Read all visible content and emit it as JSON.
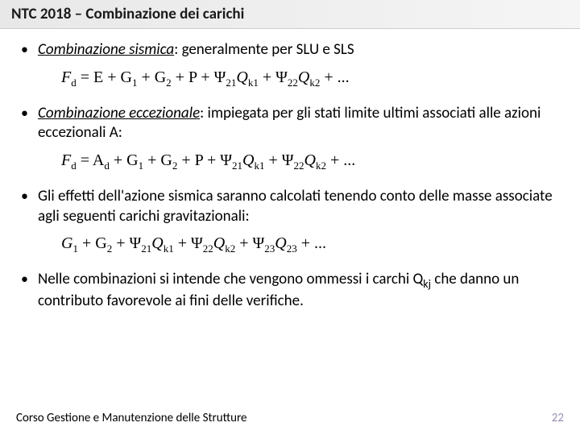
{
  "header": {
    "title": "NTC 2018 – Combinazione dei carichi"
  },
  "bullets": [
    {
      "label_italic": "Combinazione sismica",
      "text_rest": ": generalmente per SLU e SLS"
    },
    {
      "label_italic": "Combinazione eccezionale",
      "text_rest": ": impiegata per gli stati limite ultimi associati alle azioni eccezionali A:"
    },
    {
      "full_text": "Gli effetti dell'azione sismica saranno calcolati tenendo conto delle masse associate agli seguenti carichi gravitazionali:"
    },
    {
      "text_pre": "Nelle combinazioni si intende che vengono ommessi i carchi Q",
      "sub": "kj",
      "text_post": " che danno un contributo favorevole ai fini delle verifiche."
    }
  ],
  "formulas": {
    "f1": {
      "lhs": "F",
      "lhs_sub": "d",
      "eq": " = E + G",
      "g1sub": "1",
      "plus1": " + G",
      "g2sub": "2",
      "plus2": " + P + Ψ",
      "psi21sub": "21",
      "q1": "Q",
      "qk1sub": "k1",
      "plus3": " + Ψ",
      "psi22sub": "22",
      "q2": "Q",
      "qk2sub": "k2",
      "tail": " + ..."
    },
    "f2": {
      "lhs": "F",
      "lhs_sub": "d",
      "eq": " = A",
      "adsub": "d",
      "plus0": " + G",
      "g1sub": "1",
      "plus1": " + G",
      "g2sub": "2",
      "plus2": " + P + Ψ",
      "psi21sub": "21",
      "q1": "Q",
      "qk1sub": "k1",
      "plus3": " + Ψ",
      "psi22sub": "22",
      "q2": "Q",
      "qk2sub": "k2",
      "tail": " + ..."
    },
    "f3": {
      "g1": "G",
      "g1sub": "1",
      "plus1": " + G",
      "g2sub": "2",
      "plus2": " + Ψ",
      "psi21sub": "21",
      "q1": "Q",
      "qk1sub": "k1",
      "plus3": " + Ψ",
      "psi22sub": "22",
      "q2": "Q",
      "qk2sub": "k2",
      "plus4": " + Ψ",
      "psi23sub": "23",
      "q3": "Q",
      "qk3sub": "23",
      "tail": " + ..."
    }
  },
  "footer": {
    "text": "Corso Gestione e Manutenzione delle Strutture",
    "page": "22"
  }
}
